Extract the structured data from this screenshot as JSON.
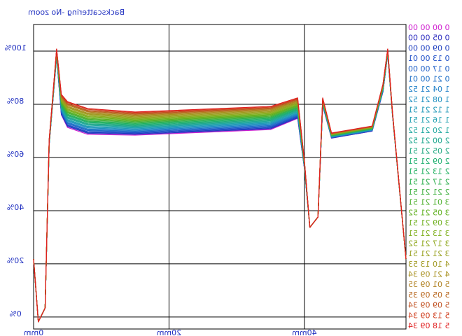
{
  "chart_data": {
    "type": "line",
    "title": "Backscattering -No zoom",
    "x": [
      0,
      0.7,
      1.7,
      2.3,
      3.4,
      4.1,
      5,
      8,
      15,
      35,
      39,
      40,
      40.8,
      42,
      42.7,
      44,
      50,
      51.6,
      52.3,
      53,
      55
    ],
    "xlim": [
      0,
      55
    ],
    "xticks": [
      {
        "value": 0,
        "label": "0mm"
      },
      {
        "value": 20,
        "label": "20mm"
      },
      {
        "value": 40,
        "label": "40mm"
      }
    ],
    "ylim": [
      -4.5,
      110
    ],
    "yticks": [
      {
        "value": 0,
        "label": "0%"
      },
      {
        "value": 20,
        "label": "20%"
      },
      {
        "value": 40,
        "label": "40%"
      },
      {
        "value": 60,
        "label": "60%"
      },
      {
        "value": 80,
        "label": "80%"
      },
      {
        "value": 100,
        "label": "100%"
      }
    ],
    "grid": true,
    "mirrored_text": true,
    "series": [
      {
        "name": "0 00 00 00",
        "color": "#d020d0",
        "values": [
          21.8,
          -1.8,
          3.4,
          64.7,
          97.9,
          76.0,
          71.3,
          68.7,
          68.4,
          70.5,
          74.7,
          55.8,
          33.7,
          37.6,
          79.5,
          67.3,
          69.9,
          84.7,
          98.9,
          76.1,
          21.8
        ]
      },
      {
        "name": "0 05 00 00",
        "color": "#3030c0",
        "values": [
          21.8,
          -1.8,
          3.4,
          64.7,
          98.0,
          76.2,
          71.7,
          69.1,
          68.7,
          70.8,
          74.9,
          55.9,
          33.7,
          37.6,
          79.6,
          67.3,
          69.9,
          84.8,
          98.9,
          76.2,
          21.8
        ]
      },
      {
        "name": "0 09 00 00",
        "color": "#2040c0",
        "values": [
          21.8,
          -1.8,
          3.4,
          64.8,
          98.1,
          76.5,
          72.0,
          69.4,
          69.0,
          71.1,
          75.2,
          56.0,
          33.7,
          37.6,
          79.7,
          67.4,
          70.0,
          84.9,
          99.0,
          76.2,
          21.8
        ]
      },
      {
        "name": "0 13 00 01",
        "color": "#2050c8",
        "values": [
          21.8,
          -1.8,
          3.4,
          64.9,
          98.2,
          76.8,
          72.3,
          69.7,
          69.3,
          71.4,
          75.5,
          56.1,
          33.7,
          37.6,
          79.8,
          67.5,
          70.1,
          85.0,
          99.1,
          76.2,
          21.8
        ]
      },
      {
        "name": "0 17 00 00",
        "color": "#2060c8",
        "values": [
          21.8,
          -1.8,
          3.4,
          64.9,
          98.3,
          77.0,
          72.7,
          70.1,
          69.6,
          71.7,
          75.7,
          56.2,
          33.7,
          37.6,
          79.9,
          67.5,
          70.1,
          85.1,
          99.1,
          76.3,
          21.8
        ]
      },
      {
        "name": "0 21 00 01",
        "color": "#2070c8",
        "values": [
          21.8,
          -1.8,
          3.4,
          65.0,
          98.4,
          77.3,
          73.0,
          70.4,
          69.9,
          72.0,
          76.0,
          56.3,
          33.7,
          37.6,
          80.0,
          67.6,
          70.2,
          85.2,
          99.2,
          76.3,
          21.8
        ]
      },
      {
        "name": "1 04 21 52",
        "color": "#2080c8",
        "values": [
          21.8,
          -1.8,
          3.4,
          65.1,
          98.5,
          77.6,
          73.3,
          70.7,
          70.2,
          72.3,
          76.3,
          56.4,
          33.7,
          37.6,
          80.1,
          67.7,
          70.3,
          85.3,
          99.3,
          76.3,
          21.8
        ]
      },
      {
        "name": "1 08 21 52",
        "color": "#2090c0",
        "values": [
          21.8,
          -1.8,
          3.4,
          65.1,
          98.6,
          77.8,
          73.7,
          71.1,
          70.5,
          72.6,
          76.5,
          56.5,
          33.7,
          37.6,
          80.2,
          67.7,
          70.3,
          85.4,
          99.3,
          76.4,
          21.8
        ]
      },
      {
        "name": "1 12 21 51",
        "color": "#2098b8",
        "values": [
          21.8,
          -1.8,
          3.4,
          65.2,
          98.7,
          78.1,
          74.0,
          71.4,
          70.8,
          72.9,
          76.8,
          56.6,
          33.7,
          37.6,
          80.3,
          67.8,
          70.4,
          85.5,
          99.4,
          76.4,
          21.8
        ]
      },
      {
        "name": "1 16 21 51",
        "color": "#20a0b0",
        "values": [
          21.8,
          -1.8,
          3.4,
          65.3,
          98.8,
          78.4,
          74.3,
          71.7,
          71.1,
          73.2,
          77.1,
          56.7,
          33.7,
          37.6,
          80.4,
          67.9,
          70.5,
          85.6,
          99.5,
          76.4,
          21.8
        ]
      },
      {
        "name": "1 20 21 52",
        "color": "#20a8a0",
        "values": [
          21.8,
          -1.8,
          3.4,
          65.3,
          98.9,
          78.6,
          74.7,
          72.1,
          71.4,
          73.5,
          77.3,
          56.8,
          33.7,
          37.6,
          80.5,
          67.9,
          70.5,
          85.7,
          99.5,
          76.5,
          21.8
        ]
      },
      {
        "name": "2 00 21 52",
        "color": "#20a890",
        "values": [
          21.8,
          -1.8,
          3.4,
          65.4,
          99.0,
          78.9,
          75.0,
          72.4,
          71.7,
          73.8,
          77.6,
          56.9,
          33.7,
          37.6,
          80.6,
          68.0,
          70.6,
          85.8,
          99.6,
          76.5,
          21.8
        ]
      },
      {
        "name": "2 05 21 51",
        "color": "#20a880",
        "values": [
          21.8,
          -1.8,
          3.4,
          65.5,
          99.1,
          79.2,
          75.3,
          72.7,
          72.0,
          74.1,
          77.9,
          57.0,
          33.7,
          37.6,
          80.7,
          68.1,
          70.7,
          85.9,
          99.7,
          76.5,
          21.8
        ]
      },
      {
        "name": "2 09 21 51",
        "color": "#20b070",
        "values": [
          21.8,
          -1.8,
          3.4,
          65.5,
          99.2,
          79.4,
          75.7,
          73.1,
          72.3,
          74.4,
          78.1,
          57.1,
          33.7,
          37.6,
          80.8,
          68.1,
          70.7,
          86.0,
          99.7,
          76.6,
          21.8
        ]
      },
      {
        "name": "2 13 21 51",
        "color": "#20b060",
        "values": [
          21.8,
          -1.8,
          3.4,
          65.6,
          99.3,
          79.7,
          76.0,
          73.4,
          72.6,
          74.7,
          78.4,
          57.2,
          33.7,
          37.6,
          80.9,
          68.2,
          70.8,
          86.1,
          99.8,
          76.6,
          21.8
        ]
      },
      {
        "name": "2 17 21 51",
        "color": "#30b050",
        "values": [
          21.8,
          -1.8,
          3.4,
          65.7,
          99.4,
          80.0,
          76.3,
          73.7,
          72.9,
          75.0,
          78.7,
          57.3,
          33.7,
          37.6,
          81.0,
          68.3,
          70.9,
          86.2,
          99.9,
          76.6,
          21.8
        ]
      },
      {
        "name": "2 21 21 51",
        "color": "#40b040",
        "values": [
          21.8,
          -1.8,
          3.4,
          65.7,
          99.5,
          80.2,
          76.7,
          74.1,
          73.2,
          75.3,
          78.9,
          57.4,
          33.7,
          37.6,
          81.1,
          68.3,
          70.9,
          86.3,
          99.9,
          76.7,
          21.8
        ]
      },
      {
        "name": "3 01 21 51",
        "color": "#50b030",
        "values": [
          21.8,
          -1.8,
          3.4,
          65.8,
          99.6,
          80.5,
          77.0,
          74.4,
          73.5,
          75.6,
          79.2,
          57.5,
          33.7,
          37.6,
          81.2,
          68.4,
          71.0,
          86.4,
          100.0,
          76.7,
          21.8
        ]
      },
      {
        "name": "3 05 21 52",
        "color": "#60b020",
        "values": [
          21.8,
          -1.8,
          3.4,
          65.9,
          99.7,
          80.8,
          77.3,
          74.7,
          73.8,
          75.9,
          79.5,
          57.6,
          33.7,
          37.6,
          81.3,
          68.5,
          71.1,
          86.5,
          100.1,
          76.7,
          21.8
        ]
      },
      {
        "name": "3 09 21 51",
        "color": "#70b020",
        "values": [
          21.8,
          -1.8,
          3.4,
          65.9,
          99.8,
          81.0,
          77.7,
          75.1,
          74.1,
          76.2,
          79.7,
          57.7,
          33.7,
          37.6,
          81.4,
          68.5,
          71.1,
          86.6,
          100.1,
          76.8,
          21.8
        ]
      },
      {
        "name": "3 13 21 51",
        "color": "#80b020",
        "values": [
          21.8,
          -1.8,
          3.4,
          66.0,
          99.9,
          81.3,
          78.0,
          75.4,
          74.4,
          76.5,
          80.0,
          57.8,
          33.7,
          37.6,
          81.5,
          68.6,
          71.2,
          86.7,
          100.2,
          76.8,
          21.8
        ]
      },
      {
        "name": "3 17 21 52",
        "color": "#90a820",
        "values": [
          21.8,
          -1.8,
          3.4,
          66.1,
          100.0,
          81.6,
          78.3,
          75.7,
          74.7,
          76.8,
          80.3,
          57.9,
          33.7,
          37.6,
          81.6,
          68.7,
          71.3,
          86.8,
          100.3,
          76.8,
          21.8
        ]
      },
      {
        "name": "3 21 21 51",
        "color": "#98a020",
        "values": [
          21.8,
          -1.8,
          3.4,
          66.1,
          100.1,
          81.8,
          78.7,
          76.1,
          75.0,
          77.1,
          80.5,
          58.0,
          33.7,
          37.6,
          81.7,
          68.7,
          71.3,
          86.9,
          100.3,
          76.9,
          21.8
        ]
      },
      {
        "name": "4 10 13 53",
        "color": "#a09820",
        "values": [
          21.8,
          -1.8,
          3.4,
          66.2,
          100.2,
          82.1,
          79.0,
          76.4,
          75.3,
          77.4,
          80.8,
          58.1,
          33.7,
          37.6,
          81.8,
          68.8,
          71.4,
          87.0,
          100.4,
          76.9,
          21.8
        ]
      },
      {
        "name": "4 21 09 34",
        "color": "#a89020",
        "values": [
          21.8,
          -1.8,
          3.4,
          66.3,
          100.3,
          82.4,
          79.3,
          76.7,
          75.6,
          77.7,
          81.1,
          58.2,
          33.7,
          37.6,
          81.9,
          68.9,
          71.5,
          87.1,
          100.5,
          76.9,
          21.8
        ]
      },
      {
        "name": "5 01 09 35",
        "color": "#b08020",
        "values": [
          21.8,
          -1.8,
          3.4,
          66.3,
          100.4,
          82.6,
          79.7,
          77.1,
          75.9,
          78.0,
          81.3,
          58.3,
          33.7,
          37.6,
          82.0,
          68.9,
          71.5,
          87.2,
          100.5,
          77.0,
          21.8
        ]
      },
      {
        "name": "5 05 09 35",
        "color": "#b86820",
        "values": [
          21.8,
          -1.8,
          3.4,
          66.4,
          100.5,
          82.9,
          80.0,
          77.4,
          76.2,
          78.3,
          81.6,
          58.4,
          33.7,
          37.6,
          82.1,
          69.0,
          71.6,
          87.3,
          100.6,
          77.0,
          21.8
        ]
      },
      {
        "name": "5 09 09 34",
        "color": "#c05020",
        "values": [
          21.8,
          -1.8,
          3.4,
          66.5,
          100.6,
          83.2,
          80.3,
          77.7,
          76.5,
          78.6,
          81.9,
          58.5,
          33.7,
          37.6,
          82.2,
          69.1,
          71.7,
          87.4,
          100.7,
          77.0,
          21.8
        ]
      },
      {
        "name": "5 13 09 34",
        "color": "#d04020",
        "values": [
          21.8,
          -1.8,
          3.4,
          66.5,
          100.7,
          83.4,
          80.7,
          78.1,
          76.8,
          78.9,
          82.1,
          58.6,
          33.7,
          37.6,
          82.3,
          69.1,
          71.7,
          87.5,
          100.7,
          77.1,
          21.8
        ]
      },
      {
        "name": "5 18 09 34",
        "color": "#e02020",
        "values": [
          21.8,
          -1.8,
          3.4,
          66.6,
          100.8,
          83.7,
          81.0,
          78.4,
          77.1,
          79.2,
          82.4,
          58.7,
          33.7,
          37.6,
          82.4,
          69.2,
          71.8,
          87.6,
          100.8,
          77.1,
          21.8
        ]
      }
    ]
  }
}
